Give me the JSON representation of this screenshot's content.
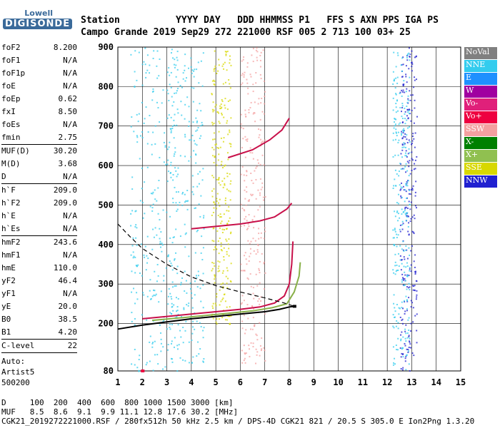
{
  "logo": {
    "line1": "Lowell",
    "line2": "DIGISONDE"
  },
  "header": {
    "line1": "Station          YYYY DAY   DDD HHMMSS P1   FFS S AXN PPS IGA PS",
    "line2": "Campo Grande 2019 Sep29 272 221000 RSF 005 2 713 100 03+ 25"
  },
  "params": [
    {
      "group": [
        [
          "foF2",
          "8.200"
        ],
        [
          "foF1",
          "N/A"
        ],
        [
          "foF1p",
          "N/A"
        ],
        [
          "foE",
          "N/A"
        ],
        [
          "foEp",
          "0.62"
        ],
        [
          "fxI",
          "8.50"
        ],
        [
          "foEs",
          "N/A"
        ],
        [
          "fmin",
          "2.75"
        ]
      ]
    },
    {
      "group": [
        [
          "MUF(D)",
          "30.20"
        ],
        [
          "M(D)",
          "3.68"
        ],
        [
          "D",
          "N/A"
        ]
      ]
    },
    {
      "group": [
        [
          "h`F",
          "209.0"
        ],
        [
          "h`F2",
          "209.0"
        ],
        [
          "h`E",
          "N/A"
        ],
        [
          "h`Es",
          "N/A"
        ]
      ]
    },
    {
      "group": [
        [
          "hmF2",
          "243.6"
        ],
        [
          "hmF1",
          "N/A"
        ],
        [
          "hmE",
          "110.0"
        ],
        [
          "yF2",
          "46.4"
        ],
        [
          "yF1",
          "N/A"
        ],
        [
          "yE",
          "20.0"
        ],
        [
          "B0",
          "38.5"
        ],
        [
          "B1",
          "4.20"
        ]
      ]
    },
    {
      "group": [
        [
          "C-level",
          "22"
        ]
      ]
    }
  ],
  "auto": [
    "Auto:",
    "Artist5",
    "500200"
  ],
  "legend": [
    {
      "label": "NoVal",
      "color": "#808080"
    },
    {
      "label": "NNE",
      "color": "#33ccee"
    },
    {
      "label": "E",
      "color": "#1e90ff"
    },
    {
      "label": "W",
      "color": "#a000a0"
    },
    {
      "label": "Vo-",
      "color": "#e0207a"
    },
    {
      "label": "Vo+",
      "color": "#ee0040"
    },
    {
      "label": "SSW",
      "color": "#f4a0a0"
    },
    {
      "label": "X-",
      "color": "#008000"
    },
    {
      "label": "X+",
      "color": "#90c050"
    },
    {
      "label": "SSE",
      "color": "#d8d800"
    },
    {
      "label": "NNW",
      "color": "#2020d0"
    }
  ],
  "footer": {
    "line1": "D     100  200  400  600  800 1000 1500 3000 [km]",
    "line2": "MUF   8.5  8.6  9.1  9.9 11.1 12.8 17.6 30.2 [MHz]",
    "line3": "CGK21_2019272221000.RSF / 280fx512h 50 kHz 2.5 km / DPS-4D CGK21 821 / 20.5 S 305.0 E Ion2Png 1.3.20"
  },
  "chart_data": {
    "type": "scatter",
    "xlabel": "",
    "ylabel": "",
    "xlim": [
      1,
      15
    ],
    "ylim": [
      80,
      900
    ],
    "x_ticks": [
      1,
      2,
      3,
      4,
      5,
      6,
      7,
      8,
      9,
      10,
      11,
      12,
      13,
      14,
      15
    ],
    "y_ticks": [
      80,
      200,
      300,
      400,
      500,
      600,
      700,
      800,
      900
    ],
    "grid": true,
    "legend_position": "right",
    "series": [
      {
        "name": "Vo+ trace (O-mode)",
        "color": "#c8104a",
        "points": [
          [
            2.0,
            212
          ],
          [
            3.0,
            218
          ],
          [
            4.0,
            224
          ],
          [
            5.0,
            230
          ],
          [
            6.0,
            236
          ],
          [
            6.8,
            242
          ],
          [
            7.4,
            252
          ],
          [
            7.8,
            270
          ],
          [
            8.0,
            300
          ],
          [
            8.1,
            350
          ],
          [
            8.15,
            408
          ]
        ]
      },
      {
        "name": "X+ trace (X-mode)",
        "color": "#88b048",
        "points": [
          [
            2.4,
            208
          ],
          [
            3.5,
            214
          ],
          [
            4.5,
            220
          ],
          [
            5.5,
            226
          ],
          [
            6.5,
            232
          ],
          [
            7.3,
            240
          ],
          [
            7.9,
            250
          ],
          [
            8.2,
            280
          ],
          [
            8.4,
            320
          ],
          [
            8.45,
            355
          ]
        ]
      },
      {
        "name": "Second hop",
        "color": "#c8104a",
        "points": [
          [
            4.0,
            440
          ],
          [
            5.0,
            446
          ],
          [
            6.0,
            452
          ],
          [
            6.8,
            460
          ],
          [
            7.4,
            470
          ],
          [
            7.9,
            490
          ],
          [
            8.1,
            505
          ]
        ]
      },
      {
        "name": "Third hop",
        "color": "#c8104a",
        "points": [
          [
            5.5,
            620
          ],
          [
            6.5,
            640
          ],
          [
            7.2,
            665
          ],
          [
            7.7,
            690
          ],
          [
            8.0,
            720
          ]
        ]
      },
      {
        "name": "Profile (solid)",
        "color": "#000000",
        "points": [
          [
            1.0,
            186
          ],
          [
            2.0,
            196
          ],
          [
            3.0,
            204
          ],
          [
            4.0,
            212
          ],
          [
            5.0,
            218
          ],
          [
            6.0,
            224
          ],
          [
            7.0,
            230
          ],
          [
            7.6,
            236
          ],
          [
            8.0,
            242
          ],
          [
            8.2,
            243.6
          ]
        ]
      },
      {
        "name": "Profile (dashed)",
        "color": "#000000",
        "dashed": true,
        "points": [
          [
            1.0,
            452
          ],
          [
            1.5,
            420
          ],
          [
            2.0,
            390
          ],
          [
            3.0,
            350
          ],
          [
            4.0,
            318
          ],
          [
            5.0,
            296
          ],
          [
            6.0,
            280
          ],
          [
            7.0,
            265
          ],
          [
            7.8,
            252
          ],
          [
            8.2,
            243.6
          ]
        ]
      }
    ],
    "scatter_clusters": [
      {
        "color": "#33ccee",
        "x": [
          1.5,
          3.5
        ],
        "y": [
          80,
          900
        ]
      },
      {
        "color": "#33ccee",
        "x": [
          3.0,
          4.5
        ],
        "y": [
          100,
          900
        ]
      },
      {
        "color": "#d8d800",
        "x": [
          4.8,
          5.6
        ],
        "y": [
          200,
          900
        ]
      },
      {
        "color": "#f4a0a0",
        "x": [
          6.0,
          7.0
        ],
        "y": [
          100,
          900
        ]
      },
      {
        "color": "#2020d0",
        "x": [
          12.5,
          13.2
        ],
        "y": [
          80,
          900
        ]
      },
      {
        "color": "#33ccee",
        "x": [
          12.2,
          12.9
        ],
        "y": [
          80,
          900
        ]
      }
    ],
    "markers": [
      {
        "x": 2.0,
        "y": 80,
        "color": "#ee0040"
      },
      {
        "x": 8.2,
        "y": 243.6,
        "color": "#000000"
      }
    ]
  }
}
